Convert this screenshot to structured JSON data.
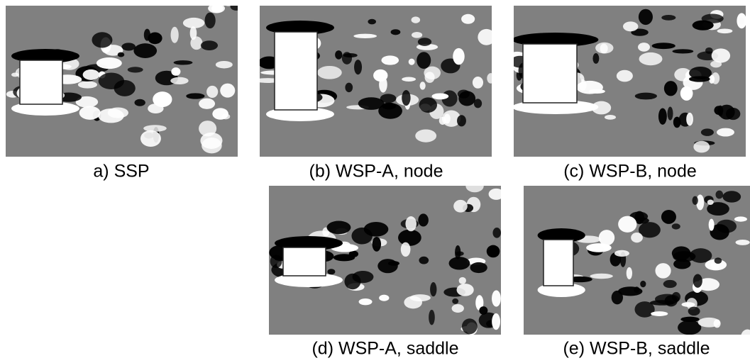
{
  "panels": [
    {
      "caption": "a) SSP"
    },
    {
      "caption": "(b) WSP-A, node"
    },
    {
      "caption": "(c) WSP-B, node"
    },
    {
      "caption": "(d) WSP-A, saddle"
    },
    {
      "caption": "(e) WSP-B, saddle"
    }
  ]
}
